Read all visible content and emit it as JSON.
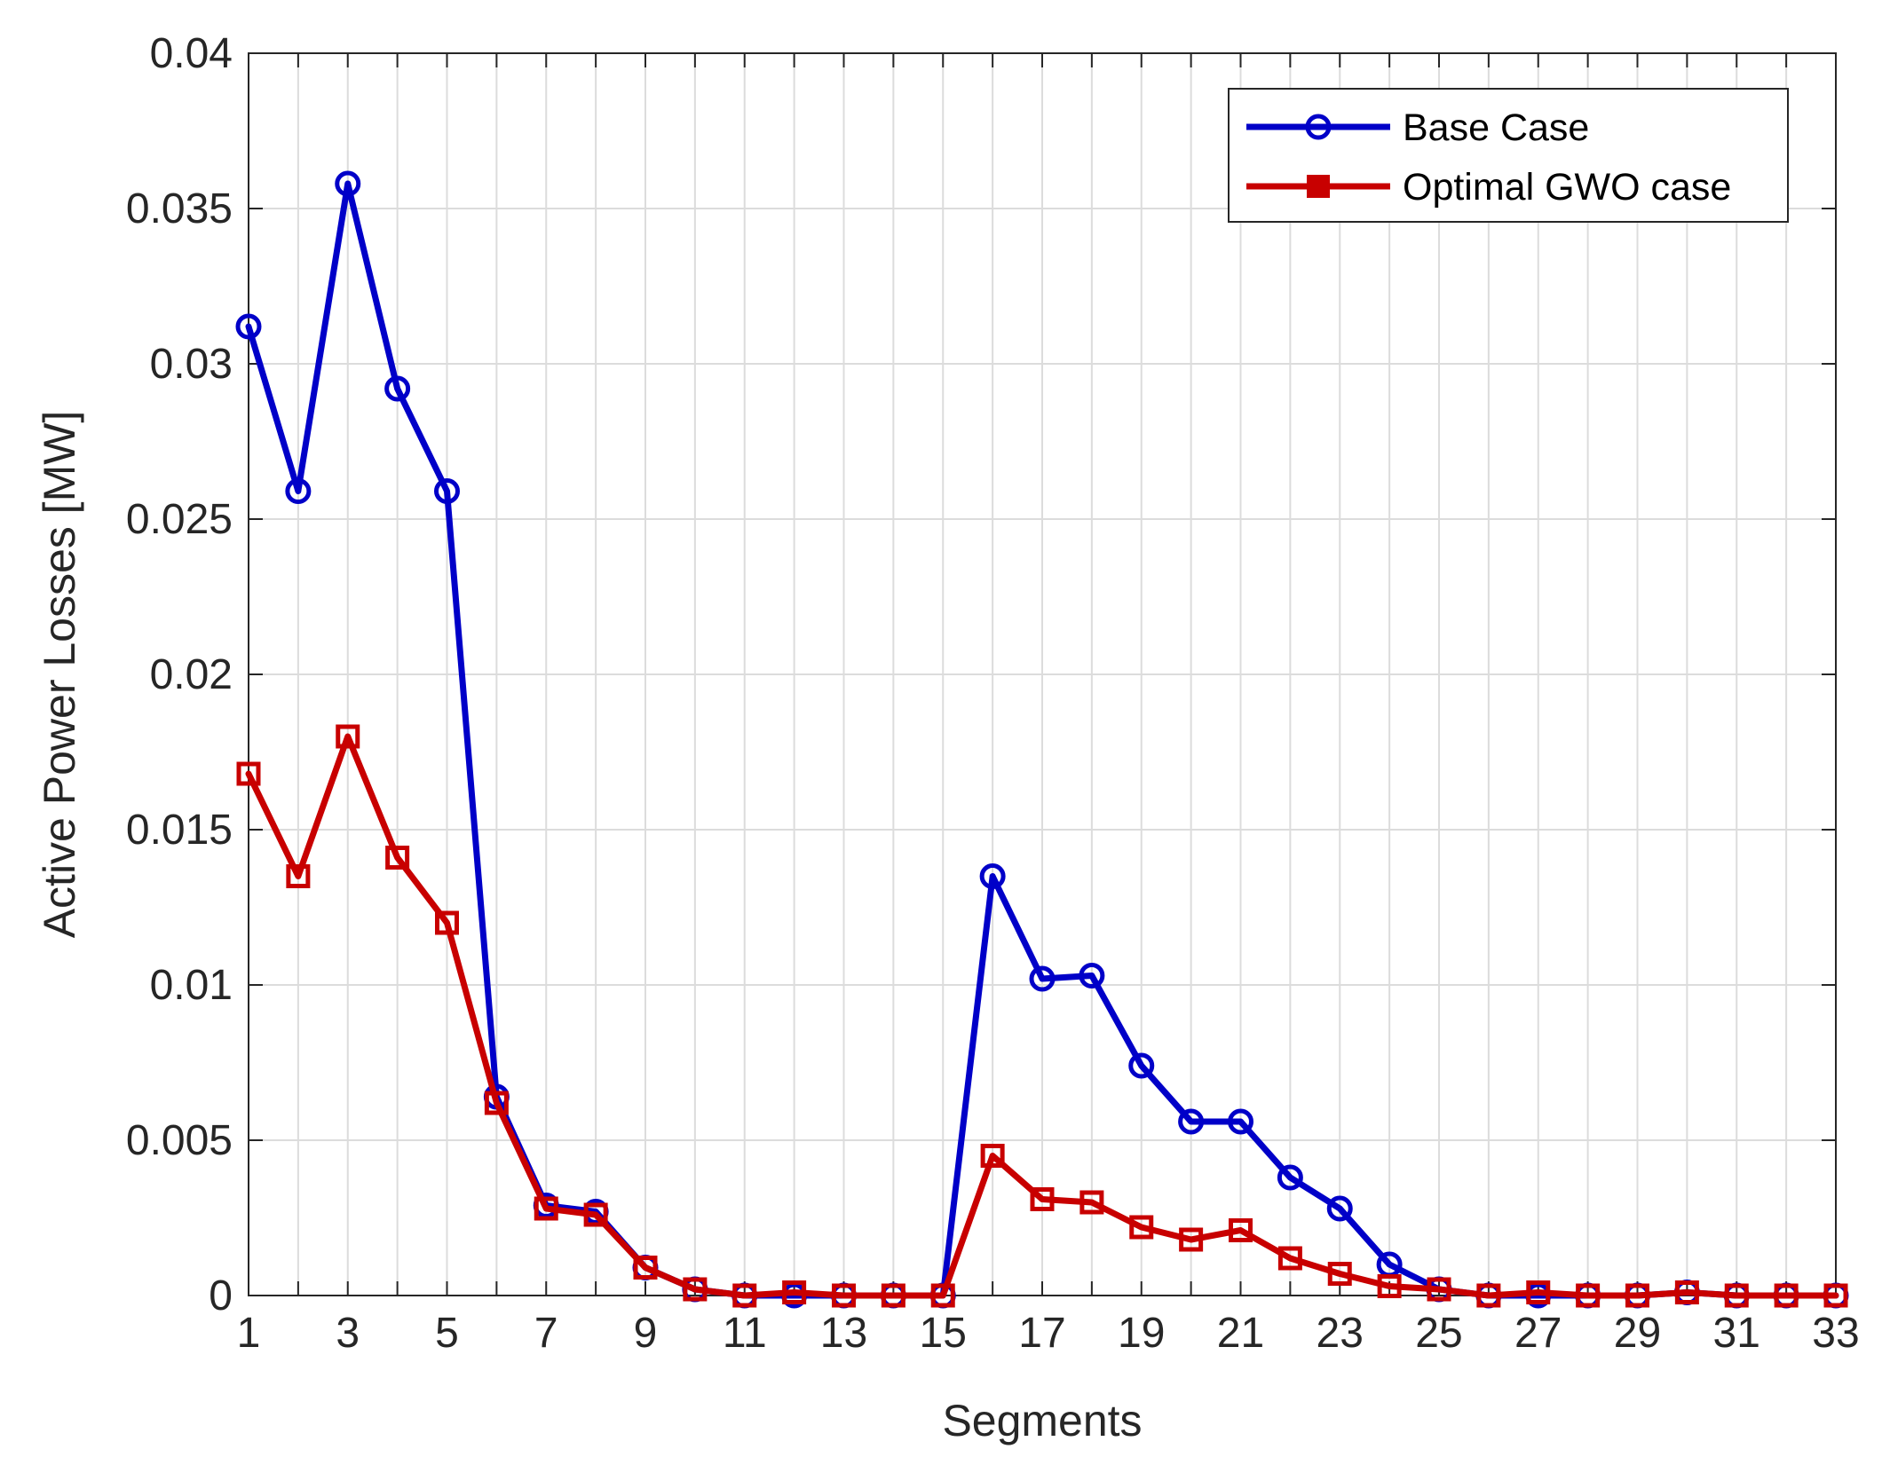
{
  "chart_data": {
    "type": "line",
    "title": "",
    "xlabel": "Segments",
    "ylabel": "Active Power Losses [MW]",
    "xlim": [
      1,
      33
    ],
    "ylim": [
      0,
      0.04
    ],
    "grid": true,
    "legend_position": "top-right",
    "x": [
      1,
      2,
      3,
      4,
      5,
      6,
      7,
      8,
      9,
      10,
      11,
      12,
      13,
      14,
      15,
      16,
      17,
      18,
      19,
      20,
      21,
      22,
      23,
      24,
      25,
      26,
      27,
      28,
      29,
      30,
      31,
      32,
      33
    ],
    "x_tick_labels": [
      "1",
      "3",
      "5",
      "7",
      "9",
      "11",
      "13",
      "15",
      "17",
      "19",
      "21",
      "23",
      "25",
      "27",
      "29",
      "31",
      "33"
    ],
    "y_tick_labels": [
      "0",
      "0.005",
      "0.01",
      "0.015",
      "0.02",
      "0.025",
      "0.03",
      "0.035",
      "0.04"
    ],
    "series": [
      {
        "name": "Base Case",
        "color": "#0000c8",
        "marker": "circle",
        "values": [
          0.0312,
          0.0259,
          0.0358,
          0.0292,
          0.0259,
          0.0064,
          0.0029,
          0.0027,
          0.0009,
          0.0002,
          0.0,
          0.0,
          0.0,
          0.0,
          0.0,
          0.0135,
          0.0102,
          0.0103,
          0.0074,
          0.0056,
          0.0056,
          0.0038,
          0.0028,
          0.001,
          0.0002,
          0.0,
          0.0,
          0.0,
          0.0,
          0.0001,
          0.0,
          0.0,
          0.0
        ]
      },
      {
        "name": "Optimal GWO case",
        "color": "#c80000",
        "marker": "square",
        "values": [
          0.0168,
          0.0135,
          0.018,
          0.0141,
          0.012,
          0.0062,
          0.0028,
          0.0026,
          0.0009,
          0.0002,
          0.0,
          0.0001,
          0.0,
          0.0,
          0.0,
          0.0045,
          0.0031,
          0.003,
          0.0022,
          0.0018,
          0.0021,
          0.0012,
          0.0007,
          0.0003,
          0.0002,
          0.0,
          0.0001,
          0.0,
          0.0,
          0.0001,
          0.0,
          0.0,
          0.0
        ]
      }
    ]
  }
}
